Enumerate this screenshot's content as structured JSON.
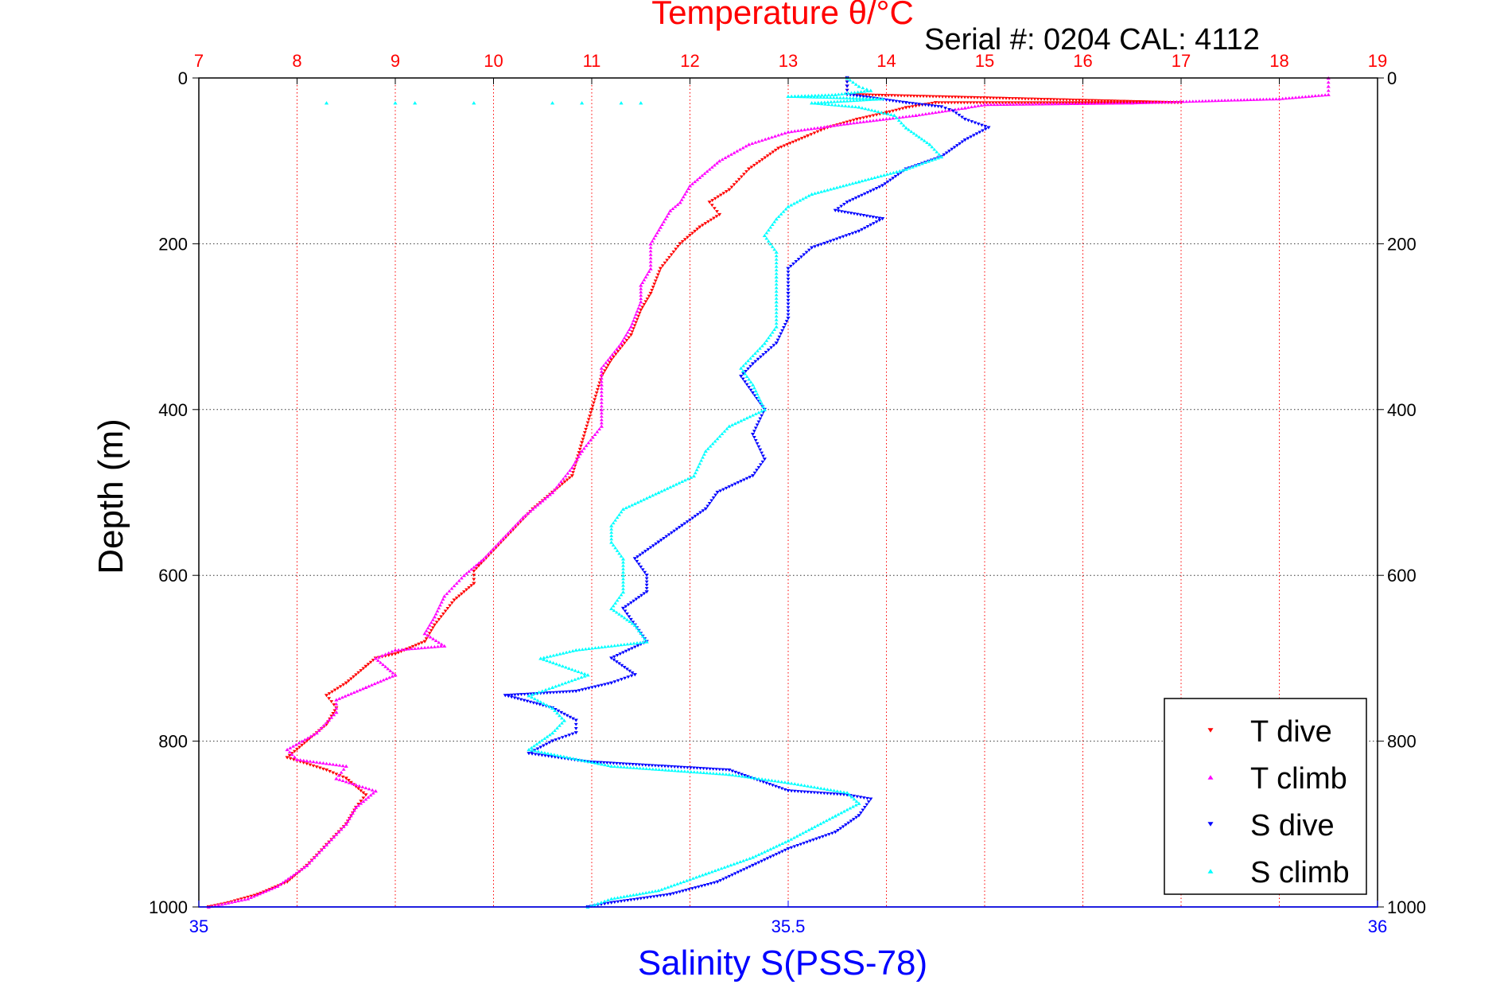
{
  "chart_data": {
    "type": "scatter",
    "title": "Temperature θ/°C",
    "subtitle": "Serial #: 0204  CAL: 4112",
    "ylabel": "Depth (m)",
    "x_top_label": "Temperature θ/°C",
    "x_bottom_label": "Salinity S(PSS-78)",
    "temperature_axis": {
      "range": [
        7,
        19
      ],
      "ticks": [
        "7",
        "8",
        "9",
        "10",
        "11",
        "12",
        "13",
        "14",
        "15",
        "16",
        "17",
        "18",
        "19"
      ]
    },
    "salinity_axis": {
      "range": [
        35,
        36
      ],
      "ticks": [
        "35",
        "35.5",
        "36"
      ]
    },
    "depth_axis": {
      "range": [
        0,
        1000
      ],
      "reversed": true,
      "ticks": [
        "0",
        "200",
        "400",
        "600",
        "800",
        "1000"
      ]
    },
    "grid": true,
    "legend_position": "bottom-right",
    "legend": [
      "T dive",
      "T climb",
      "S dive",
      "S climb"
    ],
    "colors": {
      "title": "#ff0000",
      "salinity_axis": "#0000ff",
      "t_dive": "#ff0000",
      "t_climb": "#ff00ff",
      "s_dive": "#0000ff",
      "s_climb": "#00ffff",
      "frame": "#000000"
    },
    "series": [
      {
        "name": "T dive",
        "axis": "temperature",
        "marker": "triangle-down",
        "points": [
          [
            13.6,
            0
          ],
          [
            13.6,
            10
          ],
          [
            13.6,
            20
          ],
          [
            17,
            30
          ],
          [
            14.5,
            30
          ],
          [
            14.2,
            36
          ],
          [
            14.0,
            42
          ],
          [
            13.7,
            50
          ],
          [
            13.4,
            60
          ],
          [
            13.2,
            70
          ],
          [
            12.9,
            85
          ],
          [
            12.6,
            110
          ],
          [
            12.4,
            135
          ],
          [
            12.2,
            150
          ],
          [
            12.3,
            165
          ],
          [
            12.1,
            180
          ],
          [
            11.9,
            200
          ],
          [
            11.7,
            230
          ],
          [
            11.6,
            260
          ],
          [
            11.5,
            280
          ],
          [
            11.4,
            310
          ],
          [
            11.2,
            340
          ],
          [
            11.1,
            360
          ],
          [
            11.0,
            400
          ],
          [
            10.9,
            440
          ],
          [
            10.8,
            480
          ],
          [
            10.6,
            500
          ],
          [
            10.4,
            520
          ],
          [
            10.2,
            545
          ],
          [
            10.0,
            570
          ],
          [
            9.8,
            595
          ],
          [
            9.8,
            610
          ],
          [
            9.6,
            630
          ],
          [
            9.4,
            660
          ],
          [
            9.3,
            680
          ],
          [
            9.0,
            695
          ],
          [
            8.8,
            700
          ],
          [
            8.7,
            710
          ],
          [
            8.5,
            730
          ],
          [
            8.3,
            745
          ],
          [
            8.4,
            760
          ],
          [
            8.3,
            780
          ],
          [
            8.1,
            800
          ],
          [
            7.9,
            820
          ],
          [
            8.3,
            835
          ],
          [
            8.5,
            845
          ],
          [
            8.7,
            865
          ],
          [
            8.6,
            880
          ],
          [
            8.5,
            900
          ],
          [
            8.3,
            925
          ],
          [
            8.1,
            950
          ],
          [
            7.9,
            970
          ],
          [
            7.6,
            985
          ],
          [
            7.3,
            995
          ],
          [
            7.1,
            1000
          ]
        ]
      },
      {
        "name": "T climb",
        "axis": "temperature",
        "marker": "triangle-up",
        "points": [
          [
            18.5,
            0
          ],
          [
            18.5,
            10
          ],
          [
            18.5,
            20
          ],
          [
            18.0,
            25
          ],
          [
            16.5,
            30
          ],
          [
            15.0,
            32
          ],
          [
            14.8,
            36
          ],
          [
            14.3,
            45
          ],
          [
            13.6,
            55
          ],
          [
            13.0,
            65
          ],
          [
            12.6,
            80
          ],
          [
            12.3,
            100
          ],
          [
            12.0,
            130
          ],
          [
            11.9,
            150
          ],
          [
            11.8,
            160
          ],
          [
            11.7,
            180
          ],
          [
            11.6,
            200
          ],
          [
            11.6,
            230
          ],
          [
            11.5,
            250
          ],
          [
            11.5,
            270
          ],
          [
            11.4,
            300
          ],
          [
            11.3,
            320
          ],
          [
            11.1,
            350
          ],
          [
            11.1,
            370
          ],
          [
            11.1,
            400
          ],
          [
            11.1,
            420
          ],
          [
            10.9,
            450
          ],
          [
            10.8,
            470
          ],
          [
            10.6,
            500
          ],
          [
            10.3,
            530
          ],
          [
            10.1,
            555
          ],
          [
            9.9,
            580
          ],
          [
            9.7,
            600
          ],
          [
            9.5,
            625
          ],
          [
            9.4,
            650
          ],
          [
            9.3,
            670
          ],
          [
            9.5,
            685
          ],
          [
            9.0,
            690
          ],
          [
            8.8,
            700
          ],
          [
            9.0,
            720
          ],
          [
            8.7,
            735
          ],
          [
            8.4,
            750
          ],
          [
            8.4,
            765
          ],
          [
            8.2,
            790
          ],
          [
            7.9,
            810
          ],
          [
            8.0,
            822
          ],
          [
            8.5,
            830
          ],
          [
            8.4,
            845
          ],
          [
            8.8,
            860
          ],
          [
            8.6,
            880
          ],
          [
            8.5,
            900
          ],
          [
            8.3,
            925
          ],
          [
            8.1,
            950
          ],
          [
            7.8,
            975
          ],
          [
            7.5,
            990
          ],
          [
            7.1,
            1000
          ]
        ]
      },
      {
        "name": "S dive",
        "axis": "salinity",
        "marker": "triangle-down",
        "points": [
          [
            35.55,
            0
          ],
          [
            35.55,
            10
          ],
          [
            35.55,
            20
          ],
          [
            35.6,
            30
          ],
          [
            35.63,
            35
          ],
          [
            35.64,
            40
          ],
          [
            35.65,
            50
          ],
          [
            35.67,
            60
          ],
          [
            35.65,
            75
          ],
          [
            35.63,
            95
          ],
          [
            35.6,
            110
          ],
          [
            35.58,
            130
          ],
          [
            35.55,
            150
          ],
          [
            35.54,
            160
          ],
          [
            35.58,
            170
          ],
          [
            35.56,
            185
          ],
          [
            35.52,
            205
          ],
          [
            35.5,
            230
          ],
          [
            35.5,
            260
          ],
          [
            35.5,
            290
          ],
          [
            35.49,
            320
          ],
          [
            35.47,
            345
          ],
          [
            35.46,
            360
          ],
          [
            35.47,
            380
          ],
          [
            35.48,
            400
          ],
          [
            35.47,
            430
          ],
          [
            35.48,
            460
          ],
          [
            35.47,
            480
          ],
          [
            35.44,
            500
          ],
          [
            35.43,
            520
          ],
          [
            35.41,
            540
          ],
          [
            35.39,
            560
          ],
          [
            35.37,
            580
          ],
          [
            35.38,
            600
          ],
          [
            35.38,
            620
          ],
          [
            35.36,
            640
          ],
          [
            35.37,
            660
          ],
          [
            35.38,
            680
          ],
          [
            35.35,
            700
          ],
          [
            35.37,
            720
          ],
          [
            35.35,
            730
          ],
          [
            35.32,
            740
          ],
          [
            35.26,
            745
          ],
          [
            35.3,
            760
          ],
          [
            35.32,
            775
          ],
          [
            35.32,
            790
          ],
          [
            35.3,
            800
          ],
          [
            35.28,
            815
          ],
          [
            35.33,
            825
          ],
          [
            35.45,
            835
          ],
          [
            35.5,
            860
          ],
          [
            35.55,
            865
          ],
          [
            35.57,
            870
          ],
          [
            35.56,
            890
          ],
          [
            35.54,
            910
          ],
          [
            35.5,
            930
          ],
          [
            35.47,
            950
          ],
          [
            35.44,
            970
          ],
          [
            35.4,
            985
          ],
          [
            35.35,
            995
          ],
          [
            35.33,
            1000
          ]
        ]
      },
      {
        "name": "S climb",
        "axis": "salinity",
        "marker": "triangle-up",
        "points": [
          [
            35.55,
            0
          ],
          [
            35.56,
            10
          ],
          [
            35.57,
            15
          ],
          [
            35.54,
            20
          ],
          [
            35.5,
            22
          ],
          [
            35.58,
            25
          ],
          [
            35.52,
            30
          ],
          [
            35.56,
            35
          ],
          [
            35.59,
            45
          ],
          [
            35.6,
            60
          ],
          [
            35.62,
            80
          ],
          [
            35.63,
            95
          ],
          [
            35.6,
            110
          ],
          [
            35.56,
            125
          ],
          [
            35.52,
            140
          ],
          [
            35.5,
            155
          ],
          [
            35.49,
            170
          ],
          [
            35.48,
            190
          ],
          [
            35.49,
            210
          ],
          [
            35.49,
            240
          ],
          [
            35.49,
            270
          ],
          [
            35.49,
            300
          ],
          [
            35.48,
            320
          ],
          [
            35.46,
            350
          ],
          [
            35.47,
            370
          ],
          [
            35.48,
            400
          ],
          [
            35.45,
            420
          ],
          [
            35.43,
            450
          ],
          [
            35.42,
            480
          ],
          [
            35.39,
            500
          ],
          [
            35.36,
            520
          ],
          [
            35.35,
            540
          ],
          [
            35.35,
            560
          ],
          [
            35.36,
            580
          ],
          [
            35.36,
            600
          ],
          [
            35.36,
            620
          ],
          [
            35.35,
            640
          ],
          [
            35.37,
            660
          ],
          [
            35.38,
            680
          ],
          [
            35.32,
            690
          ],
          [
            35.29,
            700
          ],
          [
            35.33,
            720
          ],
          [
            35.3,
            735
          ],
          [
            35.28,
            745
          ],
          [
            35.3,
            760
          ],
          [
            35.31,
            775
          ],
          [
            35.3,
            790
          ],
          [
            35.28,
            810
          ],
          [
            35.35,
            830
          ],
          [
            35.45,
            840
          ],
          [
            35.5,
            850
          ],
          [
            35.55,
            862
          ],
          [
            35.56,
            875
          ],
          [
            35.54,
            890
          ],
          [
            35.52,
            905
          ],
          [
            35.5,
            920
          ],
          [
            35.47,
            940
          ],
          [
            35.43,
            960
          ],
          [
            35.39,
            980
          ],
          [
            35.35,
            990
          ],
          [
            35.33,
            1000
          ]
        ]
      }
    ],
    "outliers": [
      {
        "series": "S climb",
        "axis": "temperature_scale",
        "points": [
          [
            8.3,
            30
          ],
          [
            9.0,
            30
          ],
          [
            9.2,
            30
          ],
          [
            9.8,
            30
          ],
          [
            10.6,
            30
          ],
          [
            10.9,
            30
          ],
          [
            11.3,
            30
          ],
          [
            11.5,
            30
          ]
        ]
      }
    ]
  }
}
